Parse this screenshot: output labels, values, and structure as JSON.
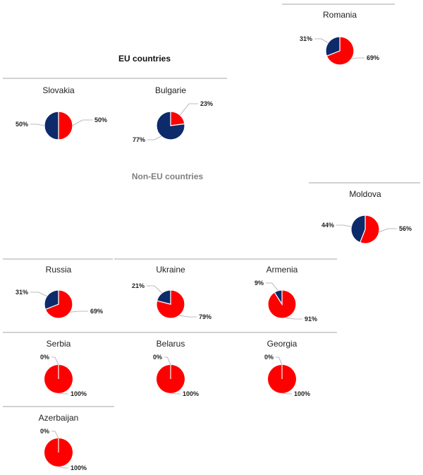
{
  "sections": {
    "eu_label": "EU countries",
    "non_eu_label": "Non-EU countries"
  },
  "colors": {
    "share_red": "#ff0000",
    "share_navy": "#0d2a6a",
    "divider": "#a6a6a6",
    "leader": "#a6a6a6",
    "title": "#222222",
    "label": "#222222"
  },
  "chart_data": [
    {
      "type": "pie",
      "title": "Romania",
      "slices": [
        {
          "label": "69%",
          "value": 69,
          "color": "#ff0000"
        },
        {
          "label": "31%",
          "value": 31,
          "color": "#0d2a6a"
        }
      ]
    },
    {
      "type": "pie",
      "title": "Slovakia",
      "slices": [
        {
          "label": "50%",
          "value": 50,
          "color": "#ff0000"
        },
        {
          "label": "50%",
          "value": 50,
          "color": "#0d2a6a"
        }
      ]
    },
    {
      "type": "pie",
      "title": "Bulgarie",
      "slices": [
        {
          "label": "23%",
          "value": 23,
          "color": "#ff0000"
        },
        {
          "label": "77%",
          "value": 77,
          "color": "#0d2a6a"
        }
      ]
    },
    {
      "type": "pie",
      "title": "Moldova",
      "slices": [
        {
          "label": "56%",
          "value": 56,
          "color": "#ff0000"
        },
        {
          "label": "44%",
          "value": 44,
          "color": "#0d2a6a"
        }
      ]
    },
    {
      "type": "pie",
      "title": "Russia",
      "slices": [
        {
          "label": "69%",
          "value": 69,
          "color": "#ff0000"
        },
        {
          "label": "31%",
          "value": 31,
          "color": "#0d2a6a"
        }
      ]
    },
    {
      "type": "pie",
      "title": "Ukraine",
      "slices": [
        {
          "label": "79%",
          "value": 79,
          "color": "#ff0000"
        },
        {
          "label": "21%",
          "value": 21,
          "color": "#0d2a6a"
        }
      ]
    },
    {
      "type": "pie",
      "title": "Armenia",
      "slices": [
        {
          "label": "91%",
          "value": 91,
          "color": "#ff0000"
        },
        {
          "label": "9%",
          "value": 9,
          "color": "#0d2a6a"
        }
      ]
    },
    {
      "type": "pie",
      "title": "Serbia",
      "slices": [
        {
          "label": "100%",
          "value": 100,
          "color": "#ff0000"
        },
        {
          "label": "0%",
          "value": 0,
          "color": "#0d2a6a"
        }
      ]
    },
    {
      "type": "pie",
      "title": "Belarus",
      "slices": [
        {
          "label": "100%",
          "value": 100,
          "color": "#ff0000"
        },
        {
          "label": "0%",
          "value": 0,
          "color": "#0d2a6a"
        }
      ]
    },
    {
      "type": "pie",
      "title": "Georgia",
      "slices": [
        {
          "label": "100%",
          "value": 100,
          "color": "#ff0000"
        },
        {
          "label": "0%",
          "value": 0,
          "color": "#0d2a6a"
        }
      ]
    },
    {
      "type": "pie",
      "title": "Azerbaijan",
      "slices": [
        {
          "label": "100%",
          "value": 100,
          "color": "#ff0000"
        },
        {
          "label": "0%",
          "value": 0,
          "color": "#0d2a6a"
        }
      ]
    }
  ]
}
